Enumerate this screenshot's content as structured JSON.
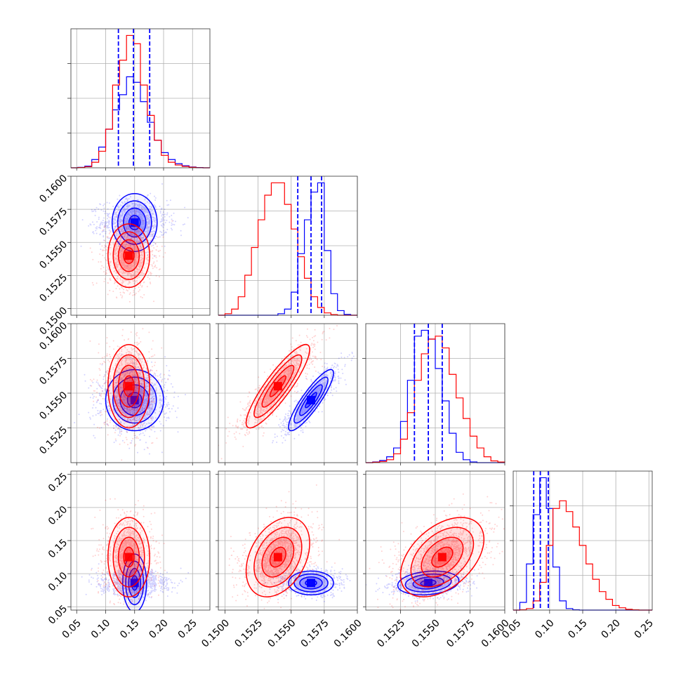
{
  "chart_data": {
    "type": "corner",
    "title": "",
    "grid": true,
    "series_colors": {
      "blue": "#0000ff",
      "red": "#ff0000"
    },
    "parameters": [
      {
        "range": [
          0.04,
          0.28
        ],
        "ticks": [
          0.05,
          0.1,
          0.15,
          0.2,
          0.25
        ],
        "tick_labels": [
          "0.05",
          "0.10",
          "0.15",
          "0.20",
          "0.25"
        ],
        "blue": {
          "edges": [
            0.04,
            0.052,
            0.064,
            0.076,
            0.088,
            0.1,
            0.112,
            0.124,
            0.136,
            0.148,
            0.16,
            0.172,
            0.184,
            0.196,
            0.208,
            0.22,
            0.232,
            0.244,
            0.256,
            0.268,
            0.28
          ],
          "counts": [
            0,
            3,
            12,
            60,
            150,
            280,
            420,
            530,
            660,
            620,
            480,
            330,
            200,
            110,
            60,
            30,
            15,
            6,
            2,
            0
          ],
          "quantiles": [
            0.122,
            0.148,
            0.176
          ]
        },
        "red": {
          "edges": [
            0.04,
            0.052,
            0.064,
            0.076,
            0.088,
            0.1,
            0.112,
            0.124,
            0.136,
            0.148,
            0.16,
            0.172,
            0.184,
            0.196,
            0.208,
            0.22,
            0.232,
            0.244,
            0.256,
            0.268,
            0.28
          ],
          "counts": [
            0,
            2,
            8,
            40,
            120,
            280,
            600,
            780,
            960,
            900,
            600,
            380,
            200,
            90,
            40,
            20,
            10,
            4,
            1,
            0
          ]
        }
      },
      {
        "range": [
          0.1495,
          0.16
        ],
        "ticks": [
          0.15,
          0.1525,
          0.155,
          0.1575,
          0.16
        ],
        "tick_labels": [
          "0.1500",
          "0.1525",
          "0.1550",
          "0.1575",
          "0.1600"
        ],
        "blue": {
          "edges": [
            0.1495,
            0.15,
            0.1505,
            0.151,
            0.1515,
            0.152,
            0.1525,
            0.153,
            0.1535,
            0.154,
            0.1545,
            0.155,
            0.1555,
            0.156,
            0.1565,
            0.157,
            0.1575,
            0.158,
            0.1585,
            0.159,
            0.1595,
            0.16
          ],
          "counts": [
            0,
            0,
            0,
            0,
            0,
            0,
            0,
            0,
            0,
            10,
            40,
            150,
            400,
            620,
            800,
            860,
            420,
            140,
            30,
            5,
            0
          ],
          "quantiles": [
            0.1555,
            0.1565,
            0.1573
          ]
        },
        "red": {
          "edges": [
            0.1495,
            0.15,
            0.1505,
            0.151,
            0.1515,
            0.152,
            0.1525,
            0.153,
            0.1535,
            0.154,
            0.1545,
            0.155,
            0.1555,
            0.156,
            0.1565,
            0.157,
            0.1575,
            0.158,
            0.1585,
            0.159,
            0.1595,
            0.16
          ],
          "counts": [
            0,
            10,
            40,
            120,
            260,
            440,
            620,
            780,
            860,
            860,
            720,
            560,
            380,
            240,
            120,
            50,
            15,
            4,
            0,
            0,
            0
          ]
        }
      },
      {
        "range": [
          0.15,
          0.16
        ],
        "ticks": [
          0.1525,
          0.155,
          0.1575,
          0.16
        ],
        "tick_labels": [
          "0.1525",
          "0.1550",
          "0.1575",
          "0.1600"
        ],
        "blue": {
          "edges": [
            0.15,
            0.1505,
            0.151,
            0.1515,
            0.152,
            0.1525,
            0.153,
            0.1535,
            0.154,
            0.1545,
            0.155,
            0.1555,
            0.156,
            0.1565,
            0.157,
            0.1575,
            0.158,
            0.1585,
            0.159,
            0.1595,
            0.16
          ],
          "counts": [
            0,
            5,
            15,
            40,
            100,
            280,
            560,
            860,
            900,
            840,
            640,
            420,
            200,
            70,
            20,
            5,
            0,
            0,
            0,
            0
          ],
          "quantiles": [
            0.1535,
            0.1545,
            0.1555
          ]
        },
        "red": {
          "edges": [
            0.15,
            0.1505,
            0.151,
            0.1515,
            0.152,
            0.1525,
            0.153,
            0.1535,
            0.154,
            0.1545,
            0.155,
            0.1555,
            0.156,
            0.1565,
            0.157,
            0.1575,
            0.158,
            0.1585,
            0.159,
            0.1595,
            0.16
          ],
          "counts": [
            0,
            3,
            8,
            20,
            60,
            160,
            340,
            560,
            740,
            840,
            860,
            780,
            600,
            440,
            300,
            180,
            100,
            40,
            12,
            4
          ]
        }
      },
      {
        "range": [
          0.045,
          0.255
        ],
        "ticks": [
          0.05,
          0.1,
          0.15,
          0.2,
          0.25
        ],
        "tick_labels": [
          "0.05",
          "0.10",
          "0.15",
          "0.20",
          "0.25"
        ],
        "blue": {
          "edges": [
            0.045,
            0.055,
            0.065,
            0.075,
            0.085,
            0.095,
            0.105,
            0.115,
            0.125,
            0.135,
            0.145,
            0.155,
            0.165,
            0.175,
            0.185,
            0.195,
            0.205,
            0.215,
            0.225,
            0.235,
            0.245,
            0.255
          ],
          "counts": [
            0,
            50,
            300,
            620,
            860,
            660,
            280,
            60,
            10,
            2,
            0,
            0,
            0,
            0,
            0,
            0,
            0,
            0,
            0,
            0,
            0
          ],
          "quantiles": [
            0.076,
            0.086,
            0.098
          ]
        },
        "red": {
          "edges": [
            0.045,
            0.055,
            0.065,
            0.075,
            0.085,
            0.095,
            0.105,
            0.115,
            0.125,
            0.135,
            0.145,
            0.155,
            0.165,
            0.175,
            0.185,
            0.195,
            0.205,
            0.215,
            0.225,
            0.235,
            0.245,
            0.255
          ],
          "counts": [
            0,
            2,
            10,
            60,
            180,
            420,
            660,
            710,
            640,
            540,
            420,
            300,
            200,
            120,
            70,
            30,
            15,
            5,
            2,
            0,
            0
          ]
        }
      }
    ],
    "pairs": [
      {
        "row": 1,
        "col": 0,
        "blue": {
          "mean": [
            0.15,
            0.1565
          ],
          "sd": [
            0.025,
            0.00085
          ],
          "corr": 0.0
        },
        "red": {
          "mean": [
            0.14,
            0.154
          ],
          "sd": [
            0.018,
            0.0012
          ],
          "corr": 0.0
        }
      },
      {
        "row": 2,
        "col": 0,
        "blue": {
          "mean": [
            0.15,
            0.1545
          ],
          "sd": [
            0.025,
            0.0011
          ],
          "corr": 0.0
        },
        "red": {
          "mean": [
            0.14,
            0.1555
          ],
          "sd": [
            0.018,
            0.0015
          ],
          "corr": 0.0
        }
      },
      {
        "row": 2,
        "col": 1,
        "blue": {
          "mean": [
            0.1565,
            0.1545
          ],
          "sd": [
            0.00085,
            0.0011
          ],
          "corr": 0.88
        },
        "red": {
          "mean": [
            0.154,
            0.1555
          ],
          "sd": [
            0.0012,
            0.0015
          ],
          "corr": 0.88
        }
      },
      {
        "row": 3,
        "col": 0,
        "blue": {
          "mean": [
            0.15,
            0.086
          ],
          "sd": [
            0.025,
            0.009
          ],
          "corr": 0.0
        },
        "red": {
          "mean": [
            0.14,
            0.125
          ],
          "sd": [
            0.018,
            0.03
          ],
          "corr": 0.0
        }
      },
      {
        "row": 3,
        "col": 1,
        "blue": {
          "mean": [
            0.1565,
            0.086
          ],
          "sd": [
            0.00085,
            0.009
          ],
          "corr": 0.0
        },
        "red": {
          "mean": [
            0.154,
            0.125
          ],
          "sd": [
            0.0012,
            0.03
          ],
          "corr": 0.35
        }
      },
      {
        "row": 3,
        "col": 2,
        "blue": {
          "mean": [
            0.1545,
            0.086
          ],
          "sd": [
            0.0011,
            0.009
          ],
          "corr": 0.2
        },
        "red": {
          "mean": [
            0.1555,
            0.125
          ],
          "sd": [
            0.0015,
            0.03
          ],
          "corr": 0.45
        }
      }
    ]
  }
}
